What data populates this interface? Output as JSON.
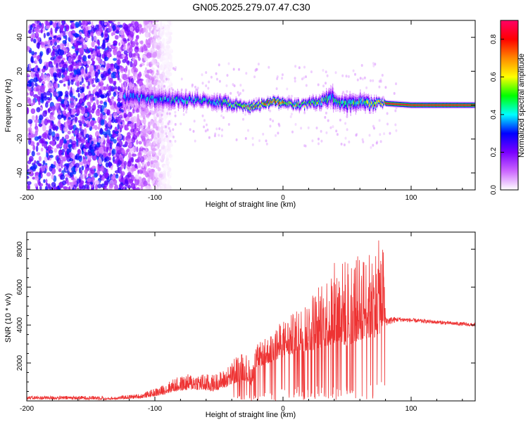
{
  "title": "GN05.2025.279.07.47.C30",
  "chart_data": [
    {
      "type": "heatmap",
      "name": "spectrogram",
      "xlabel": "Height of straight line (km)",
      "ylabel": "Frequency (Hz)",
      "xlim": [
        -200,
        150
      ],
      "ylim": [
        -50,
        50
      ],
      "x_ticks": [
        -200,
        -100,
        0,
        100
      ],
      "y_ticks": [
        -40,
        -20,
        0,
        20,
        40
      ],
      "colorbar": {
        "label": "Normalized spectral amplitude",
        "range": [
          0.0,
          0.9
        ],
        "ticks": [
          "0.0",
          "0.2",
          "0.4",
          "0.6",
          "0.8"
        ],
        "colors": [
          "#ffffff",
          "#cc66ff",
          "#7a00ff",
          "#0000ff",
          "#00ffff",
          "#00ff00",
          "#ffff00",
          "#ff8800",
          "#ff0000",
          "#ff0066"
        ]
      },
      "noise_region_x": [
        -200,
        -97
      ],
      "ridge": {
        "x": [
          -125,
          -110,
          -90,
          -70,
          -50,
          -35,
          -25,
          -10,
          0,
          10,
          20,
          30,
          38,
          42,
          50,
          60,
          70,
          75,
          80,
          100,
          120,
          150
        ],
        "center": [
          5,
          4,
          3,
          3,
          2,
          0,
          -1,
          2,
          2,
          0,
          1,
          2,
          5,
          1,
          1,
          2,
          1,
          2,
          1,
          0,
          0,
          0
        ],
        "half_width": [
          6,
          5,
          5,
          4,
          4,
          3,
          3,
          3,
          3,
          3,
          3,
          4,
          7,
          4,
          5,
          5,
          4,
          3,
          2,
          2,
          2,
          2
        ],
        "peak": [
          0.35,
          0.4,
          0.45,
          0.45,
          0.5,
          0.6,
          0.7,
          0.85,
          0.8,
          0.6,
          0.55,
          0.6,
          0.45,
          0.5,
          0.5,
          0.55,
          0.6,
          0.75,
          0.85,
          0.85,
          0.85,
          0.85
        ]
      }
    },
    {
      "type": "line",
      "name": "snr",
      "xlabel": "Height of straight line (km)",
      "ylabel": "SNR (10 * v/v)",
      "xlim": [
        -200,
        150
      ],
      "ylim": [
        0,
        8900
      ],
      "x_ticks": [
        -200,
        -100,
        0,
        100
      ],
      "y_ticks": [
        2000,
        4000,
        6000,
        8000
      ],
      "color": "#ee3333",
      "envelope": {
        "x": [
          -200,
          -140,
          -110,
          -95,
          -85,
          -70,
          -55,
          -45,
          -35,
          -30,
          -25,
          -20,
          -10,
          0,
          10,
          20,
          30,
          40,
          50,
          60,
          70,
          75,
          78,
          80,
          90,
          110,
          130,
          150
        ],
        "base": [
          0,
          50,
          150,
          300,
          500,
          600,
          500,
          700,
          1000,
          1100,
          800,
          1800,
          2000,
          2300,
          2500,
          2600,
          2800,
          3000,
          2900,
          3200,
          3300,
          3500,
          3800,
          4200,
          4300,
          4200,
          4100,
          4000
        ],
        "spread": [
          120,
          120,
          250,
          500,
          700,
          900,
          900,
          1000,
          1500,
          1600,
          1200,
          1200,
          1500,
          2000,
          2200,
          3000,
          3600,
          4300,
          4700,
          4500,
          4600,
          5000,
          4800,
          500,
          250,
          200,
          200,
          200
        ]
      }
    }
  ]
}
